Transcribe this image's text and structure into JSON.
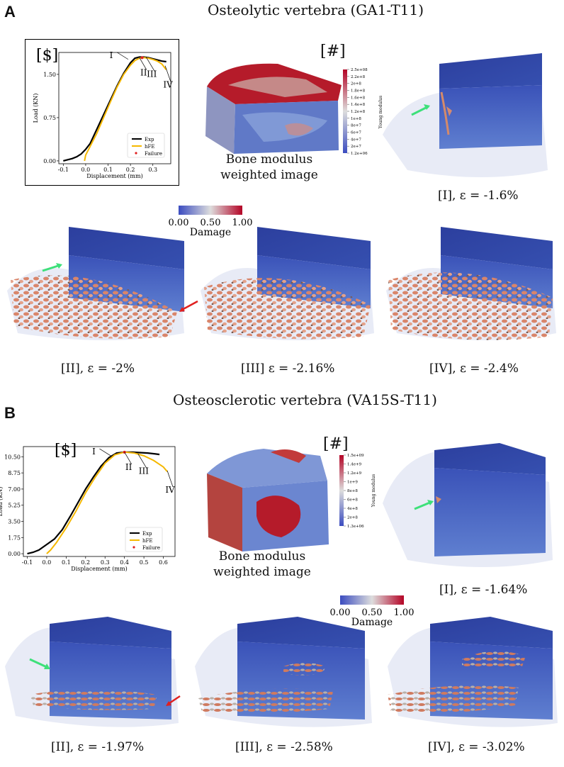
{
  "panels": [
    {
      "letter": "A",
      "title": "Osteolytic vertebra (GA1-T11)",
      "plot_tag": "[$]",
      "modulus_tag": "[#]",
      "modulus_caption_lines": [
        "Bone modulus",
        "weighted image"
      ],
      "modulus_bar_label": "Young modulus",
      "modulus_ticks": [
        "2.5e+08",
        "2.2e+8",
        "2e+8",
        "1.8e+8",
        "1.6e+8",
        "1.4e+8",
        "1.2e+8",
        "1e+8",
        "8e+7",
        "6e+7",
        "4e+7",
        "2e+7",
        "1.2e+06"
      ],
      "damage_bar": {
        "ticks": [
          "0.00",
          "0.50",
          "1.00"
        ],
        "title": "Damage"
      },
      "captions": [
        "[I],  ε =  -1.6%",
        "[II],  ε = -2%",
        "[III]  ε = -2.16%",
        "[IV],  ε = -2.4%"
      ],
      "chart_data": {
        "type": "line",
        "xlabel": "Displacement (mm)",
        "ylabel": "Load (KN)",
        "xlim": [
          -0.12,
          0.38
        ],
        "ylim": [
          -0.05,
          1.88
        ],
        "xticks": [
          "-0.1",
          "0.0",
          "0.1",
          "0.2",
          "0.3"
        ],
        "xtick_values": [
          -0.1,
          0.0,
          0.1,
          0.2,
          0.3
        ],
        "yticks": [
          "0.00",
          "0.75",
          "1.50"
        ],
        "ytick_values": [
          0.0,
          0.75,
          1.5
        ],
        "legend": [
          "Exp",
          "hFE",
          "Failure"
        ],
        "legend_position": "bottom-right",
        "series": [
          {
            "name": "Exp",
            "color": "#000000",
            "x": [
              -0.1,
              -0.08,
              -0.06,
              -0.04,
              -0.02,
              0.0,
              0.02,
              0.05,
              0.08,
              0.11,
              0.14,
              0.17,
              0.2,
              0.22,
              0.24,
              0.26,
              0.28,
              0.3,
              0.32,
              0.34,
              0.36
            ],
            "y": [
              0.0,
              0.02,
              0.04,
              0.07,
              0.12,
              0.2,
              0.3,
              0.55,
              0.8,
              1.05,
              1.3,
              1.52,
              1.7,
              1.78,
              1.8,
              1.8,
              1.79,
              1.77,
              1.75,
              1.73,
              1.72
            ]
          },
          {
            "name": "hFE",
            "color": "#f5b800",
            "x": [
              -0.005,
              0.0,
              0.02,
              0.05,
              0.08,
              0.11,
              0.14,
              0.17,
              0.2,
              0.22,
              0.24,
              0.26,
              0.28,
              0.3,
              0.32,
              0.34,
              0.36
            ],
            "y": [
              0.0,
              0.1,
              0.25,
              0.48,
              0.75,
              1.02,
              1.28,
              1.5,
              1.66,
              1.74,
              1.78,
              1.79,
              1.78,
              1.76,
              1.73,
              1.68,
              1.58
            ]
          },
          {
            "name": "Failure",
            "color": "#e02020",
            "x": [
              0.252
            ],
            "y": [
              1.79
            ]
          }
        ],
        "annotations": [
          {
            "label": "I",
            "x": 0.19,
            "y": 1.76
          },
          {
            "label": "II",
            "x": 0.24,
            "y": 1.79
          },
          {
            "label": "III",
            "x": 0.27,
            "y": 1.8
          },
          {
            "label": "IV",
            "x": 0.355,
            "y": 1.65
          }
        ]
      }
    },
    {
      "letter": "B",
      "title": "Osteosclerotic vertebra (VA15S-T11)",
      "plot_tag": "[$]",
      "modulus_tag": "[#]",
      "modulus_caption_lines": [
        "Bone modulus",
        "weighted image"
      ],
      "modulus_bar_label": "Young modulus",
      "modulus_ticks": [
        "1.5e+09",
        "1.4e+9",
        "1.2e+9",
        "1e+9",
        "8e+8",
        "6e+8",
        "4e+8",
        "2e+8",
        "1.3e+06"
      ],
      "damage_bar": {
        "ticks": [
          "0.00",
          "0.50",
          "1.00"
        ],
        "title": "Damage"
      },
      "captions": [
        "[I],  ε =  -1.64%",
        "[II],  ε = -1.97%",
        "[III],  ε = -2.58%",
        "[IV],  ε = -3.02%"
      ],
      "chart_data": {
        "type": "line",
        "xlabel": "Displacement (mm)",
        "ylabel": "Load (KN)",
        "xlim": [
          -0.12,
          0.66
        ],
        "ylim": [
          -0.3,
          11.6
        ],
        "xticks": [
          "-0.1",
          "0.0",
          "0.1",
          "0.2",
          "0.3",
          "0.4",
          "0.5",
          "0.6"
        ],
        "xtick_values": [
          -0.1,
          0.0,
          0.1,
          0.2,
          0.3,
          0.4,
          0.5,
          0.6
        ],
        "yticks": [
          "0.00",
          "1.75",
          "3.50",
          "5.25",
          "7.00",
          "8.75",
          "10.50"
        ],
        "ytick_values": [
          0.0,
          1.75,
          3.5,
          5.25,
          7.0,
          8.75,
          10.5
        ],
        "legend": [
          "Exp",
          "hFE",
          "Failure"
        ],
        "legend_position": "bottom-right",
        "series": [
          {
            "name": "Exp",
            "color": "#000000",
            "x": [
              -0.1,
              -0.07,
              -0.04,
              0.0,
              0.04,
              0.08,
              0.12,
              0.16,
              0.2,
              0.24,
              0.28,
              0.32,
              0.36,
              0.4,
              0.44,
              0.48,
              0.52,
              0.56,
              0.58
            ],
            "y": [
              0.0,
              0.15,
              0.4,
              1.0,
              1.6,
              2.6,
              4.0,
              5.5,
              7.0,
              8.3,
              9.5,
              10.4,
              10.9,
              11.0,
              11.0,
              10.95,
              10.9,
              10.8,
              10.75
            ]
          },
          {
            "name": "hFE",
            "color": "#f5b800",
            "x": [
              0.0,
              0.02,
              0.05,
              0.1,
              0.15,
              0.2,
              0.25,
              0.3,
              0.35,
              0.4,
              0.45,
              0.5,
              0.55,
              0.6,
              0.62
            ],
            "y": [
              0.0,
              0.4,
              1.2,
              2.8,
              4.6,
              6.6,
              8.3,
              9.8,
              10.7,
              11.0,
              10.9,
              10.6,
              10.1,
              9.4,
              8.9
            ]
          },
          {
            "name": "Failure",
            "color": "#e02020",
            "x": [
              0.4
            ],
            "y": [
              11.0
            ]
          }
        ],
        "annotations": [
          {
            "label": "I",
            "x": 0.33,
            "y": 10.6
          },
          {
            "label": "II",
            "x": 0.4,
            "y": 11.0
          },
          {
            "label": "III",
            "x": 0.47,
            "y": 10.8
          },
          {
            "label": "IV",
            "x": 0.62,
            "y": 9.0
          }
        ]
      }
    }
  ]
}
